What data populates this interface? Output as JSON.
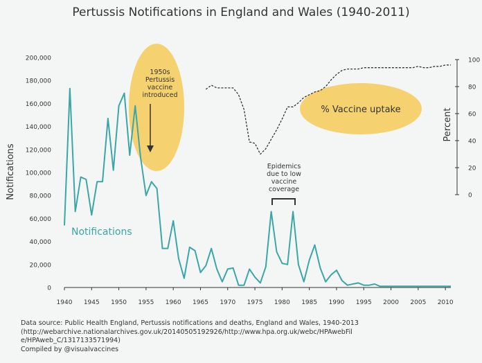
{
  "title": "Pertussis Notifications in England and Wales (1940-2011)",
  "chart_data": {
    "type": "line",
    "title": "Pertussis Notifications in England and Wales (1940-2011)",
    "xlabel": "",
    "ylabel": "Notifications",
    "y2label": "Percent",
    "xlim": [
      1940,
      2011
    ],
    "ylim": [
      0,
      200000
    ],
    "y2lim": [
      0,
      100
    ],
    "xticks": [
      1940,
      1945,
      1950,
      1955,
      1960,
      1965,
      1970,
      1975,
      1980,
      1985,
      1990,
      1995,
      2000,
      2005,
      2010
    ],
    "yticks": [
      0,
      20000,
      40000,
      60000,
      80000,
      100000,
      120000,
      140000,
      160000,
      180000,
      200000
    ],
    "y2ticks": [
      0,
      20,
      40,
      60,
      80,
      100
    ],
    "colors": {
      "notifications": "#3aa6a6",
      "uptake": "#333333",
      "highlight": "#f5c542"
    },
    "series": [
      {
        "name": "Notifications",
        "axis": "left",
        "style": "solid",
        "x": [
          1940,
          1941,
          1942,
          1943,
          1944,
          1945,
          1946,
          1947,
          1948,
          1949,
          1950,
          1951,
          1952,
          1953,
          1954,
          1955,
          1956,
          1957,
          1958,
          1959,
          1960,
          1961,
          1962,
          1963,
          1964,
          1965,
          1966,
          1967,
          1968,
          1969,
          1970,
          1971,
          1972,
          1973,
          1974,
          1975,
          1976,
          1977,
          1978,
          1979,
          1980,
          1981,
          1982,
          1983,
          1984,
          1985,
          1986,
          1987,
          1988,
          1989,
          1990,
          1991,
          1992,
          1993,
          1994,
          1995,
          1996,
          1997,
          1998,
          1999,
          2000,
          2001,
          2002,
          2003,
          2004,
          2005,
          2006,
          2007,
          2008,
          2009,
          2010,
          2011
        ],
        "values": [
          54000,
          173000,
          66000,
          96000,
          94000,
          63000,
          92000,
          92000,
          147000,
          102000,
          158000,
          169000,
          115000,
          158000,
          113000,
          80000,
          92000,
          86000,
          34000,
          34000,
          58000,
          25000,
          8000,
          35000,
          32000,
          13000,
          19000,
          34000,
          16000,
          5000,
          16000,
          17000,
          2000,
          2000,
          16000,
          9000,
          4000,
          18000,
          66000,
          31000,
          21000,
          20000,
          66000,
          20000,
          5000,
          24000,
          37000,
          17000,
          5000,
          11000,
          15000,
          6000,
          2000,
          3000,
          4000,
          2000,
          2000,
          3000,
          1000,
          1000,
          1000,
          1000,
          1000,
          1000,
          1000,
          1000,
          1000,
          1000,
          1000,
          1000,
          1000,
          1000
        ]
      },
      {
        "name": "% Vaccine uptake",
        "axis": "right",
        "style": "dashed",
        "x": [
          1966,
          1967,
          1968,
          1969,
          1970,
          1971,
          1972,
          1973,
          1974,
          1975,
          1976,
          1977,
          1978,
          1979,
          1980,
          1981,
          1982,
          1983,
          1984,
          1985,
          1986,
          1987,
          1988,
          1989,
          1990,
          1991,
          1992,
          1993,
          1994,
          1995,
          1996,
          1997,
          1998,
          1999,
          2000,
          2001,
          2002,
          2003,
          2004,
          2005,
          2006,
          2007,
          2008,
          2009,
          2010,
          2011
        ],
        "values": [
          78,
          81,
          79,
          79,
          79,
          79,
          74,
          63,
          39,
          38,
          30,
          34,
          41,
          48,
          56,
          65,
          65,
          68,
          72,
          74,
          76,
          77,
          80,
          85,
          89,
          92,
          93,
          93,
          93,
          94,
          94,
          94,
          94,
          94,
          94,
          94,
          94,
          94,
          94,
          95,
          94,
          94,
          95,
          95,
          96,
          96
        ]
      }
    ],
    "annotations": {
      "vaccine": "1950s\nPertussis\nvaccine\nintroduced",
      "uptake": "% Vaccine uptake",
      "notifications": "Notifications",
      "epidemics": "Epidemics\ndue to low\nvaccine\ncoverage"
    }
  },
  "source": {
    "line1": "Data source: Public Health England, Pertussis notifications and deaths, England and Wales, 1940-2013",
    "line2": "(http://webarchive.nationalarchives.gov.uk/20140505192926/http://www.hpa.org.uk/webc/HPAwebFil",
    "line3": "e/HPAweb_C/1317133571994)",
    "line4": "Compiled by @visualvaccines"
  }
}
